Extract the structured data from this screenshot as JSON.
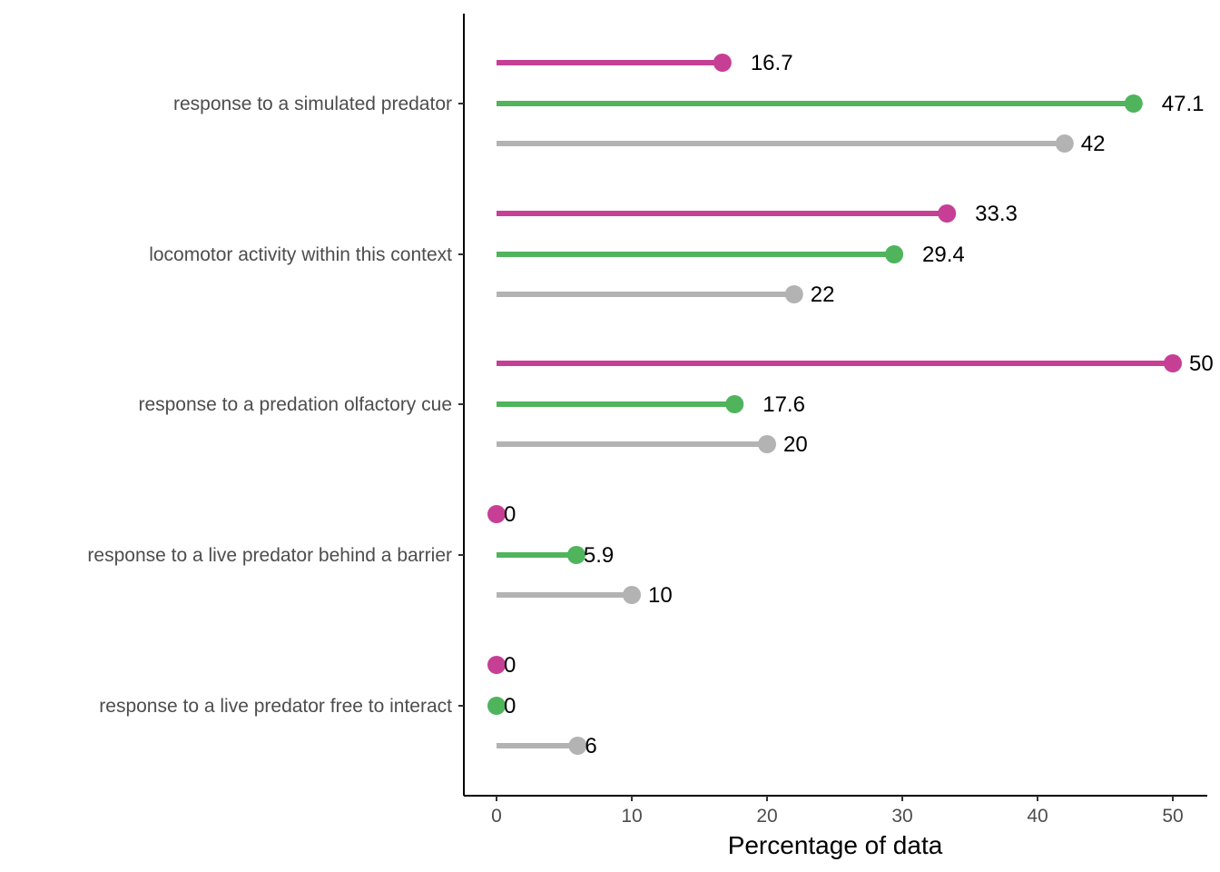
{
  "chart_data": {
    "type": "lollipop",
    "orientation": "horizontal",
    "xlabel": "Percentage of data",
    "ylabel": "",
    "xlim": [
      -2.4,
      52.5
    ],
    "xticks": [
      0,
      10,
      20,
      30,
      40,
      50
    ],
    "grid": false,
    "legend": "none",
    "categories": [
      "response to a simulated predator",
      "locomotor activity within this context",
      "response to a predation olfactory cue",
      "response to a live predator behind a barrier",
      "response to a live predator free to interact"
    ],
    "series": [
      {
        "color": "#c63f95",
        "values": [
          16.7,
          33.3,
          50,
          0,
          0
        ],
        "labels": [
          "16.7",
          "33.3",
          "50",
          "0",
          "0"
        ]
      },
      {
        "color": "#4fb45c",
        "values": [
          47.1,
          29.4,
          17.6,
          5.9,
          0
        ],
        "labels": [
          "47.1",
          "29.4",
          "17.6",
          "5.9",
          "0"
        ]
      },
      {
        "color": "#b3b3b3",
        "values": [
          42,
          22,
          20,
          10,
          6
        ],
        "labels": [
          "42",
          "22",
          "20",
          "10",
          "6"
        ]
      }
    ]
  }
}
